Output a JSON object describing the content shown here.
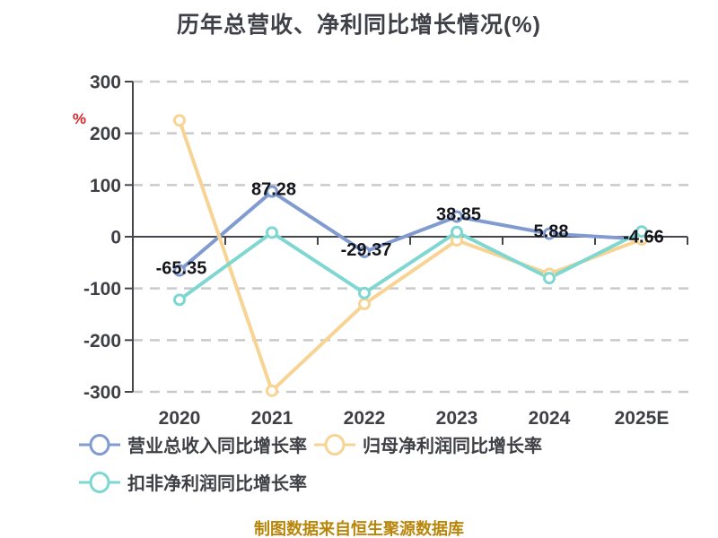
{
  "title": "历年总营收、净利同比增长情况(%)",
  "y_axis_unit": "%",
  "footer": "制图数据来自恒生聚源数据库",
  "colors": {
    "revenue_line": "#819bd1",
    "net_profit_line": "#f7d494",
    "deducted_net_profit_line": "#7fd7d1",
    "grid": "#cacaca",
    "axis": "#45464b",
    "tick_text": "#3f4046",
    "data_label": "#15161b",
    "unit_symbol": "#d9252a",
    "footer_text": "#b8860b",
    "title_text": "#3f4048"
  },
  "chart_data": {
    "type": "line",
    "title": "历年总营收、净利同比增长情况(%)",
    "categories": [
      "2020",
      "2021",
      "2022",
      "2023",
      "2024",
      "2025E"
    ],
    "series": [
      {
        "name": "营业总收入同比增长率",
        "color": "#819bd1",
        "values": [
          -65.35,
          87.28,
          -29.37,
          38.85,
          5.88,
          -4.66
        ]
      },
      {
        "name": "归母净利润同比增长率",
        "color": "#f7d494",
        "values": [
          225,
          -298,
          -130,
          -7,
          -72,
          -5
        ]
      },
      {
        "name": "扣非净利润同比增长率",
        "color": "#7fd7d1",
        "values": [
          -122,
          8,
          -109,
          9,
          -80,
          10
        ]
      }
    ],
    "point_labels": [
      "-65.35",
      "87.28",
      "-29.37",
      "38.85",
      "5.88",
      "-4.66"
    ],
    "labeled_series": "营业总收入同比增长率",
    "ylim": [
      -300,
      300
    ],
    "yticks": [
      300,
      200,
      100,
      0,
      -100,
      -200,
      -300
    ],
    "grid": "horizontal dashed",
    "zero_line": "solid",
    "legend_position": "bottom-left",
    "marker": "circle-white-fill"
  }
}
